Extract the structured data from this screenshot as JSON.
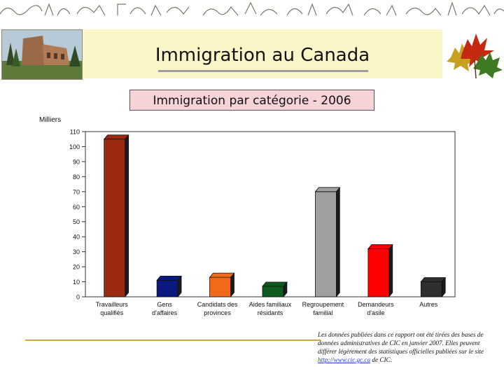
{
  "header": {
    "title": "Immigration au Canada",
    "subtitle": "Immigration par catégorie - 2006"
  },
  "images": {
    "photo": "building-photo",
    "leaves": "maple-leaves-icon"
  },
  "chart_data": {
    "type": "bar",
    "unit_label": "Milliers",
    "categories": [
      [
        "Travailleurs",
        "qualifiés"
      ],
      [
        "Gens",
        "d'affaires"
      ],
      [
        "Candidats des",
        "provinces"
      ],
      [
        "Aides familiaux",
        "résidants"
      ],
      [
        "Regroupement",
        "familial"
      ],
      [
        "Demandeurs",
        "d'asile"
      ],
      [
        "Autres"
      ]
    ],
    "values": [
      105,
      11,
      13,
      7,
      70,
      32,
      10
    ],
    "colors": [
      "#9b2a10",
      "#0a1880",
      "#f06a1a",
      "#0c5a1e",
      "#a0a0a0",
      "#ff0000",
      "#2e2e2e"
    ],
    "ylim": [
      0,
      110
    ],
    "yticks": [
      0,
      10,
      20,
      30,
      40,
      50,
      60,
      70,
      80,
      90,
      100,
      110
    ],
    "grid": false,
    "legend": "none"
  },
  "footnote": {
    "text": "Les données publiées dans ce rapport ont été tirées des bases de données administratives de CIC en janvier 2007. Elles peuvent différer légèrement des statistiques officielles publiées sur le site ",
    "link": "http://www.cic.gc.ca",
    "suffix": " de CIC."
  }
}
